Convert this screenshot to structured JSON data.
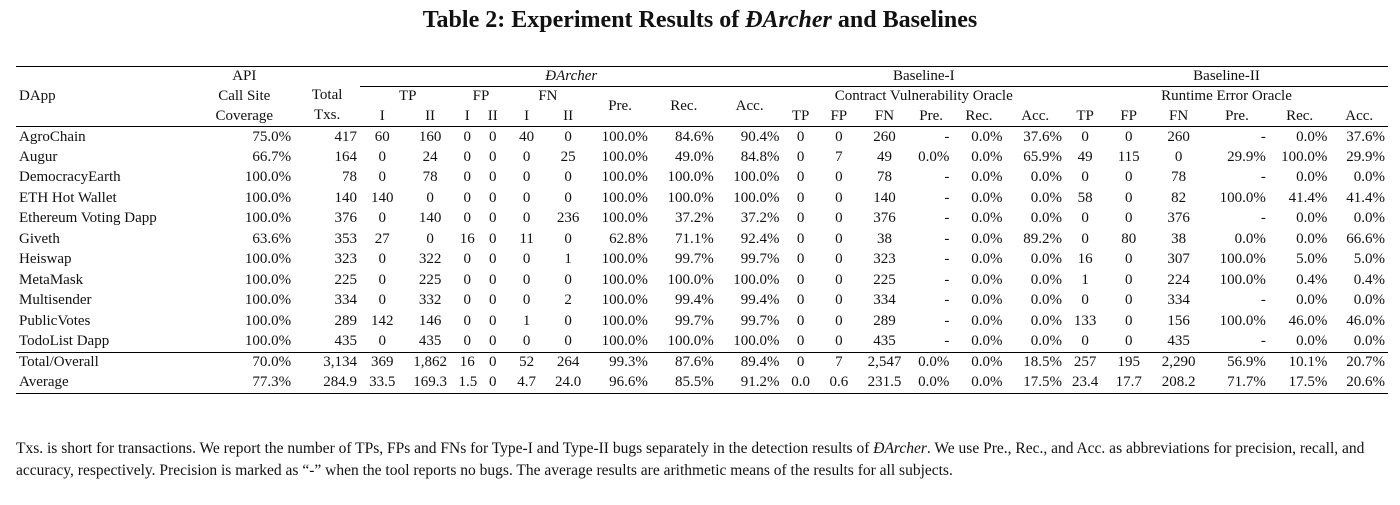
{
  "caption": {
    "prefix": "Table 2: Experiment Results of ",
    "tool": "ĐArcher",
    "suffix": " and Baselines"
  },
  "headers": {
    "dapp": "DApp",
    "api_line1": "API",
    "api_line2": "Call Site",
    "api_line3": "Coverage",
    "total_line1": "Total",
    "total_line2": "Txs.",
    "group_darcher": "ĐArcher",
    "group_b1": "Baseline-I",
    "group_b2": "Baseline-II",
    "b1_sub": "Contract Vulnerability Oracle",
    "b2_sub": "Runtime Error Oracle",
    "tp": "TP",
    "fp": "FP",
    "fn": "FN",
    "pre": "Pre.",
    "rec": "Rec.",
    "acc": "Acc.",
    "type1": "I",
    "type2": "II"
  },
  "rows": [
    [
      "AgroChain",
      "75.0%",
      "417",
      "60",
      "160",
      "0",
      "0",
      "40",
      "0",
      "100.0%",
      "84.6%",
      "90.4%",
      "0",
      "0",
      "260",
      "-",
      "0.0%",
      "37.6%",
      "0",
      "0",
      "260",
      "-",
      "0.0%",
      "37.6%"
    ],
    [
      "Augur",
      "66.7%",
      "164",
      "0",
      "24",
      "0",
      "0",
      "0",
      "25",
      "100.0%",
      "49.0%",
      "84.8%",
      "0",
      "7",
      "49",
      "0.0%",
      "0.0%",
      "65.9%",
      "49",
      "115",
      "0",
      "29.9%",
      "100.0%",
      "29.9%"
    ],
    [
      "DemocracyEarth",
      "100.0%",
      "78",
      "0",
      "78",
      "0",
      "0",
      "0",
      "0",
      "100.0%",
      "100.0%",
      "100.0%",
      "0",
      "0",
      "78",
      "-",
      "0.0%",
      "0.0%",
      "0",
      "0",
      "78",
      "-",
      "0.0%",
      "0.0%"
    ],
    [
      "ETH Hot Wallet",
      "100.0%",
      "140",
      "140",
      "0",
      "0",
      "0",
      "0",
      "0",
      "100.0%",
      "100.0%",
      "100.0%",
      "0",
      "0",
      "140",
      "-",
      "0.0%",
      "0.0%",
      "58",
      "0",
      "82",
      "100.0%",
      "41.4%",
      "41.4%"
    ],
    [
      "Ethereum Voting Dapp",
      "100.0%",
      "376",
      "0",
      "140",
      "0",
      "0",
      "0",
      "236",
      "100.0%",
      "37.2%",
      "37.2%",
      "0",
      "0",
      "376",
      "-",
      "0.0%",
      "0.0%",
      "0",
      "0",
      "376",
      "-",
      "0.0%",
      "0.0%"
    ],
    [
      "Giveth",
      "63.6%",
      "353",
      "27",
      "0",
      "16",
      "0",
      "11",
      "0",
      "62.8%",
      "71.1%",
      "92.4%",
      "0",
      "0",
      "38",
      "-",
      "0.0%",
      "89.2%",
      "0",
      "80",
      "38",
      "0.0%",
      "0.0%",
      "66.6%"
    ],
    [
      "Heiswap",
      "100.0%",
      "323",
      "0",
      "322",
      "0",
      "0",
      "0",
      "1",
      "100.0%",
      "99.7%",
      "99.7%",
      "0",
      "0",
      "323",
      "-",
      "0.0%",
      "0.0%",
      "16",
      "0",
      "307",
      "100.0%",
      "5.0%",
      "5.0%"
    ],
    [
      "MetaMask",
      "100.0%",
      "225",
      "0",
      "225",
      "0",
      "0",
      "0",
      "0",
      "100.0%",
      "100.0%",
      "100.0%",
      "0",
      "0",
      "225",
      "-",
      "0.0%",
      "0.0%",
      "1",
      "0",
      "224",
      "100.0%",
      "0.4%",
      "0.4%"
    ],
    [
      "Multisender",
      "100.0%",
      "334",
      "0",
      "332",
      "0",
      "0",
      "0",
      "2",
      "100.0%",
      "99.4%",
      "99.4%",
      "0",
      "0",
      "334",
      "-",
      "0.0%",
      "0.0%",
      "0",
      "0",
      "334",
      "-",
      "0.0%",
      "0.0%"
    ],
    [
      "PublicVotes",
      "100.0%",
      "289",
      "142",
      "146",
      "0",
      "0",
      "1",
      "0",
      "100.0%",
      "99.7%",
      "99.7%",
      "0",
      "0",
      "289",
      "-",
      "0.0%",
      "0.0%",
      "133",
      "0",
      "156",
      "100.0%",
      "46.0%",
      "46.0%"
    ],
    [
      "TodoList Dapp",
      "100.0%",
      "435",
      "0",
      "435",
      "0",
      "0",
      "0",
      "0",
      "100.0%",
      "100.0%",
      "100.0%",
      "0",
      "0",
      "435",
      "-",
      "0.0%",
      "0.0%",
      "0",
      "0",
      "435",
      "-",
      "0.0%",
      "0.0%"
    ]
  ],
  "summary_rows": [
    [
      "Total/Overall",
      "70.0%",
      "3,134",
      "369",
      "1,862",
      "16",
      "0",
      "52",
      "264",
      "99.3%",
      "87.6%",
      "89.4%",
      "0",
      "7",
      "2,547",
      "0.0%",
      "0.0%",
      "18.5%",
      "257",
      "195",
      "2,290",
      "56.9%",
      "10.1%",
      "20.7%"
    ],
    [
      "Average",
      "77.3%",
      "284.9",
      "33.5",
      "169.3",
      "1.5",
      "0",
      "4.7",
      "24.0",
      "96.6%",
      "85.5%",
      "91.2%",
      "0.0",
      "0.6",
      "231.5",
      "0.0%",
      "0.0%",
      "17.5%",
      "23.4",
      "17.7",
      "208.2",
      "71.7%",
      "17.5%",
      "20.6%"
    ]
  ],
  "notes": {
    "part1": "Txs. is short for transactions. We report the number of TPs, FPs and FNs for Type-I and Type-II bugs separately in the detection results of ",
    "tool": "ĐArcher",
    "part2": ". We use Pre., Rec., and Acc. as abbreviations for precision, recall, and accuracy, respectively. Precision is marked as “-” when the tool reports no bugs. The average results are arithmetic means of the results for all subjects."
  }
}
